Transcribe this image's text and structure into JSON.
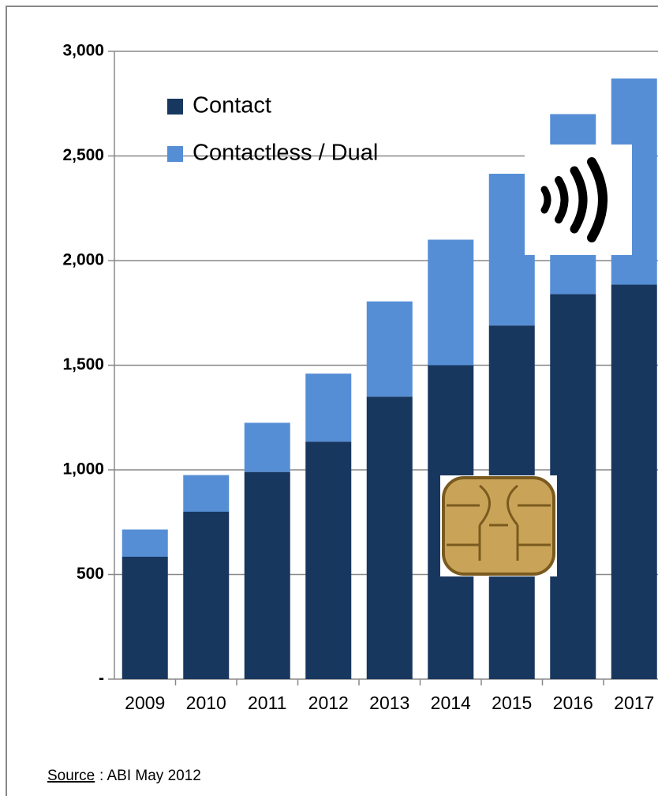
{
  "chart_data": {
    "type": "stacked_bar",
    "categories": [
      "2009",
      "2010",
      "2011",
      "2012",
      "2013",
      "2014",
      "2015",
      "2016",
      "2017"
    ],
    "series": [
      {
        "name": "Contact",
        "color": "#17375e",
        "values": [
          585,
          800,
          990,
          1135,
          1350,
          1500,
          1690,
          1840,
          1885
        ]
      },
      {
        "name": "Contactless / Dual",
        "color": "#558ed5",
        "values": [
          130,
          175,
          235,
          325,
          455,
          600,
          725,
          860,
          985
        ]
      }
    ],
    "ylim": [
      0,
      3000
    ],
    "yticks": [
      {
        "value": 0,
        "label": "-"
      },
      500,
      {
        "value": 1000,
        "label": "1,000"
      },
      {
        "value": 1500,
        "label": "1,500"
      },
      {
        "value": 2000,
        "label": "2,000"
      },
      {
        "value": 2500,
        "label": "2,500"
      },
      {
        "value": 3000,
        "label": "3,000"
      }
    ],
    "grid": true,
    "legend": "top-left",
    "source_label": "Source",
    "source_text": ": ABI May 2012"
  }
}
